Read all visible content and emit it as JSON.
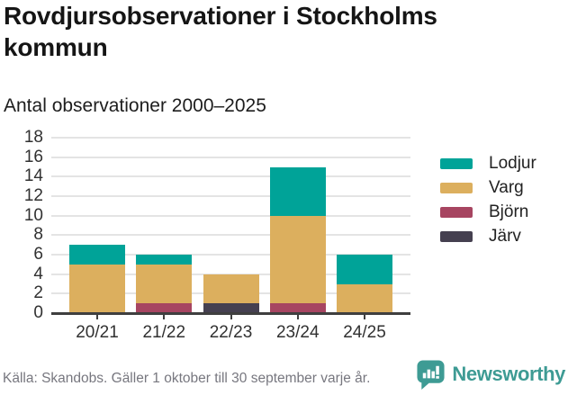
{
  "header": {
    "title": "Rovdjursobservationer i Stockholms kommun",
    "subtitle": "Antal observationer 2000–2025"
  },
  "chart_data": {
    "type": "bar",
    "stacked": true,
    "categories": [
      "20/21",
      "21/22",
      "22/23",
      "23/24",
      "24/25"
    ],
    "series": [
      {
        "name": "Lodjur",
        "color": "#00a398",
        "values": [
          2,
          1,
          0,
          5,
          3
        ]
      },
      {
        "name": "Varg",
        "color": "#dcaf5e",
        "values": [
          5,
          4,
          3,
          9,
          3
        ]
      },
      {
        "name": "Björn",
        "color": "#a74561",
        "values": [
          0,
          1,
          0,
          1,
          0
        ]
      },
      {
        "name": "Järv",
        "color": "#454050",
        "values": [
          0,
          0,
          1,
          0,
          0
        ]
      }
    ],
    "stack_order_bottom_to_top": [
      "Järv",
      "Björn",
      "Varg",
      "Lodjur"
    ],
    "totals": [
      7,
      6,
      4,
      15,
      6
    ],
    "ylim": [
      0,
      18
    ],
    "ytick_step": 2,
    "grid": true,
    "legend_position": "right"
  },
  "colors": {
    "axis": "#3f3f3f",
    "gridline": "#e4e4e4",
    "tick_text": "#313131",
    "footer_text": "#77777f",
    "brand_teal": "#3e9b94"
  },
  "footer": {
    "source": "Källa: Skandobs. Gäller 1 oktober till 30 september varje år.",
    "brand": "Newsworthy"
  }
}
